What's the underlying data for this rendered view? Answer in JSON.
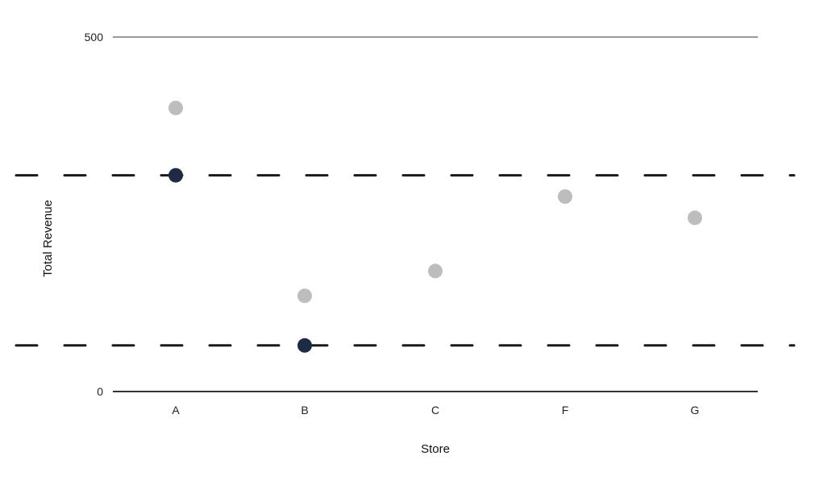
{
  "chart_data": {
    "type": "scatter",
    "title": "",
    "xlabel": "Store",
    "ylabel": "Total Revenue",
    "categories": [
      "A",
      "B",
      "C",
      "F",
      "G"
    ],
    "ylim": [
      0,
      500
    ],
    "yticks": [
      0,
      500
    ],
    "reference_lines": [
      {
        "y": 305,
        "color": "#1a1a1a",
        "style": "dashed"
      },
      {
        "y": 65,
        "color": "#1a1a1a",
        "style": "dashed"
      }
    ],
    "series": [
      {
        "color": "#bdbdbd",
        "points": [
          {
            "x": "A",
            "y": 400
          },
          {
            "x": "B",
            "y": 135
          },
          {
            "x": "C",
            "y": 170
          },
          {
            "x": "F",
            "y": 275
          },
          {
            "x": "G",
            "y": 245
          }
        ]
      },
      {
        "color": "#1f2a44",
        "points": [
          {
            "x": "A",
            "y": 305
          },
          {
            "x": "B",
            "y": 65
          }
        ]
      }
    ],
    "grid": false,
    "legend": "none"
  }
}
